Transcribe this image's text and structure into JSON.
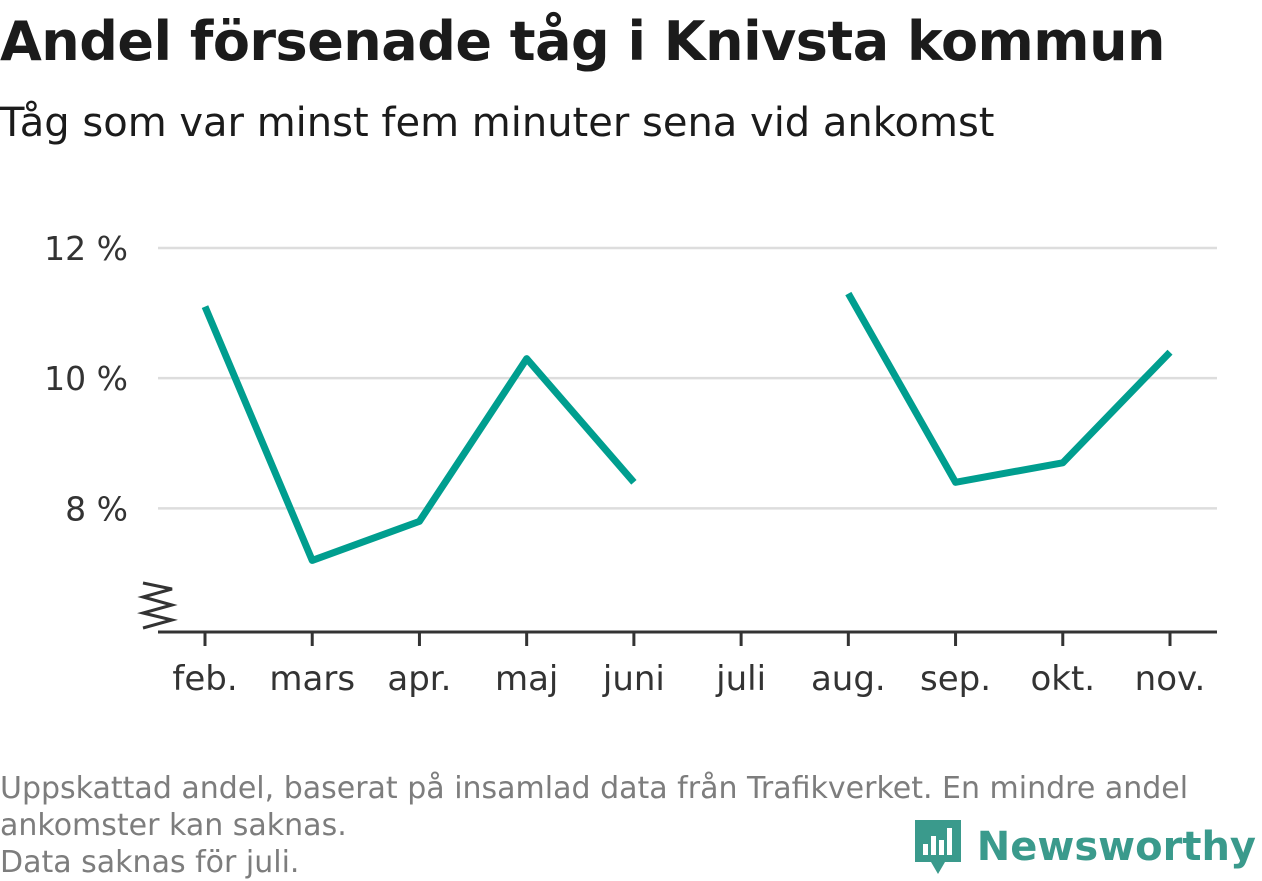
{
  "title": "Andel försenade tåg i Knivsta kommun",
  "subtitle": "Tåg som var minst fem minuter sena vid ankomst",
  "footer": {
    "note_line1": "Uppskattad andel, baserat på insamlad data från Trafikverket. En mindre andel",
    "note_line2": "ankomster kan saknas.",
    "note_line3": "Data saknas för juli."
  },
  "brand": {
    "name": "Newsworthy",
    "icon": "newsworthy-logo-icon"
  },
  "colors": {
    "line": "#009e8f",
    "grid": "#dddddd",
    "axis": "#333333",
    "brand": "#3a9a8c"
  },
  "chart_data": {
    "type": "line",
    "categories": [
      "feb.",
      "mars",
      "apr.",
      "maj",
      "juni",
      "juli",
      "aug.",
      "sep.",
      "okt.",
      "nov."
    ],
    "series": [
      {
        "values": [
          11.1,
          7.2,
          7.8,
          10.3,
          8.4,
          null,
          11.3,
          8.4,
          8.7,
          10.4
        ]
      }
    ],
    "y_ticks": [
      8,
      10,
      12
    ],
    "y_tick_labels": [
      "8 %",
      "10 %",
      "12 %"
    ],
    "ylim": [
      6.1,
      12
    ],
    "y_axis_break": true,
    "grid": true,
    "legend": "none"
  }
}
